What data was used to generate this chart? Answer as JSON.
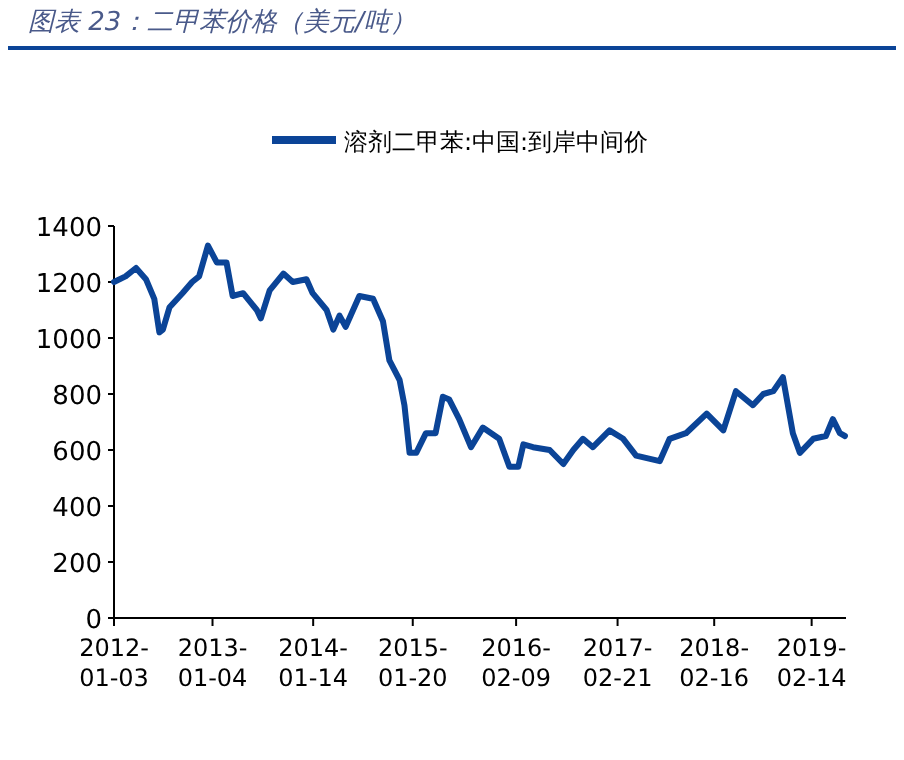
{
  "chart_data": {
    "type": "line",
    "title": "图表 23：二甲苯价格（美元/吨）",
    "legend": "top",
    "grid": false,
    "marker": "none",
    "line_style": "solid",
    "xlim": [
      "2012-01-03",
      "2019-06-22"
    ],
    "xticks": [
      {
        "value": "2012-01-03",
        "label": "2012-01-03"
      },
      {
        "value": "2013-01-04",
        "label": "2013-01-04"
      },
      {
        "value": "2014-01-14",
        "label": "2014-01-14"
      },
      {
        "value": "2015-01-20",
        "label": "2015-01-20"
      },
      {
        "value": "2016-02-09",
        "label": "2016-02-09"
      },
      {
        "value": "2017-02-21",
        "label": "2017-02-21"
      },
      {
        "value": "2018-02-16",
        "label": "2018-02-16"
      },
      {
        "value": "2019-02-14",
        "label": "2019-02-14"
      }
    ],
    "ylim": [
      0,
      1400
    ],
    "yticks": [
      0,
      200,
      400,
      600,
      800,
      1000,
      1200,
      1400
    ],
    "x": [
      "2012-01-03",
      "2012-02-15",
      "2012-03-25",
      "2012-05-01",
      "2012-06-01",
      "2012-06-20",
      "2012-07-03",
      "2012-07-28",
      "2012-09-14",
      "2012-10-20",
      "2012-11-15",
      "2012-12-18",
      "2013-01-20",
      "2013-02-25",
      "2013-03-20",
      "2013-04-28",
      "2013-06-18",
      "2013-07-03",
      "2013-08-05",
      "2013-09-25",
      "2013-10-30",
      "2013-12-20",
      "2014-01-12",
      "2014-03-05",
      "2014-03-30",
      "2014-04-22",
      "2014-05-15",
      "2014-07-05",
      "2014-08-25",
      "2014-10-01",
      "2014-10-25",
      "2014-12-02",
      "2014-12-20",
      "2015-01-08",
      "2015-02-02",
      "2015-03-10",
      "2015-04-15",
      "2015-05-12",
      "2015-06-05",
      "2015-07-12",
      "2015-08-25",
      "2015-10-08",
      "2015-12-08",
      "2016-01-15",
      "2016-02-17",
      "2016-03-07",
      "2016-04-12",
      "2016-06-13",
      "2016-08-03",
      "2016-09-09",
      "2016-10-15",
      "2016-11-21",
      "2017-01-22",
      "2017-03-14",
      "2017-05-01",
      "2017-07-28",
      "2017-09-03",
      "2017-11-03",
      "2018-01-19",
      "2018-03-22",
      "2018-05-08",
      "2018-07-10",
      "2018-08-18",
      "2018-09-24",
      "2018-10-30",
      "2018-12-06",
      "2019-01-01",
      "2019-02-20",
      "2019-04-08",
      "2019-05-04",
      "2019-05-30",
      "2019-06-18"
    ],
    "series": [
      {
        "name": "溶剂二甲苯:中国:到岸中间价",
        "color": "#0b4497",
        "values": [
          1200,
          1220,
          1250,
          1210,
          1140,
          1020,
          1030,
          1110,
          1160,
          1200,
          1220,
          1330,
          1270,
          1270,
          1150,
          1160,
          1100,
          1070,
          1170,
          1230,
          1200,
          1210,
          1160,
          1100,
          1030,
          1080,
          1040,
          1150,
          1140,
          1060,
          920,
          850,
          760,
          590,
          590,
          660,
          660,
          790,
          780,
          710,
          610,
          680,
          640,
          540,
          540,
          620,
          610,
          600,
          550,
          600,
          640,
          610,
          670,
          640,
          580,
          560,
          640,
          660,
          730,
          670,
          810,
          760,
          800,
          810,
          860,
          660,
          590,
          640,
          650,
          710,
          660,
          650
        ]
      }
    ]
  }
}
